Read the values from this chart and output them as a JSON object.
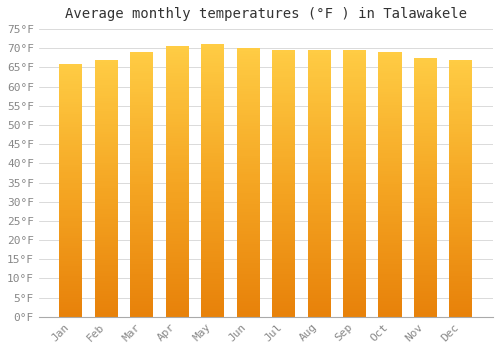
{
  "title": "Average monthly temperatures (°F ) in Talawakele",
  "months": [
    "Jan",
    "Feb",
    "Mar",
    "Apr",
    "May",
    "Jun",
    "Jul",
    "Aug",
    "Sep",
    "Oct",
    "Nov",
    "Dec"
  ],
  "values": [
    66,
    67,
    69,
    70.5,
    71,
    70,
    69.5,
    69.5,
    69.5,
    69,
    67.5,
    67
  ],
  "ylim": [
    0,
    75
  ],
  "yticks": [
    0,
    5,
    10,
    15,
    20,
    25,
    30,
    35,
    40,
    45,
    50,
    55,
    60,
    65,
    70,
    75
  ],
  "bar_color_bottom": "#E8820A",
  "bar_color_mid": "#F5A623",
  "bar_color_top": "#FFCC44",
  "background_color": "#FFFFFF",
  "grid_color": "#CCCCCC",
  "title_fontsize": 10,
  "tick_fontsize": 8,
  "font_family": "monospace",
  "bar_width": 0.65
}
